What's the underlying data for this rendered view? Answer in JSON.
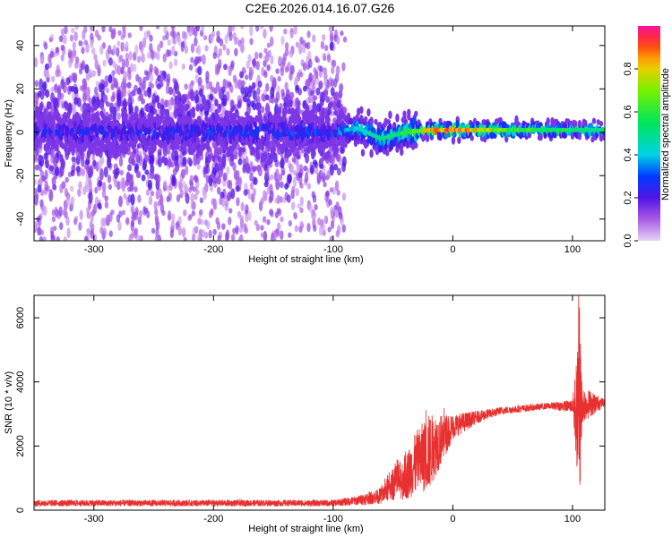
{
  "title": "C2E6.2026.014.16.07.G26",
  "chart_data": [
    {
      "type": "heatmap",
      "xlabel": "Height of straight line (km)",
      "ylabel": "Frequency (Hz)",
      "xlim": [
        -350,
        127
      ],
      "ylim": [
        -50,
        49
      ],
      "xticks": [
        -300,
        -200,
        -100,
        0,
        100
      ],
      "yticks": [
        -40,
        -20,
        0,
        20,
        40
      ],
      "colorbar": {
        "label": "Normalized spectral amplitude",
        "range": [
          0,
          1
        ],
        "ticks": [
          0.0,
          0.2,
          0.4,
          0.6,
          0.8
        ],
        "tick_labels": [
          "0.0",
          "0.2",
          "0.4",
          "0.6",
          "0.8"
        ],
        "colormap": "rainbow"
      },
      "ridge": {
        "description_points": [
          {
            "x": -350,
            "y": 0,
            "amp": 0.25
          },
          {
            "x": -100,
            "y": 0,
            "amp": 0.3
          },
          {
            "x": -80,
            "y": 2,
            "amp": 0.45
          },
          {
            "x": -60,
            "y": -3,
            "amp": 0.5
          },
          {
            "x": -40,
            "y": 0,
            "amp": 0.55
          },
          {
            "x": -20,
            "y": 1,
            "amp": 0.8
          },
          {
            "x": 0,
            "y": 1,
            "amp": 0.9
          },
          {
            "x": 50,
            "y": 1,
            "amp": 0.6
          },
          {
            "x": 100,
            "y": 1,
            "amp": 0.55
          },
          {
            "x": 127,
            "y": 1,
            "amp": 0.5
          }
        ],
        "spread_hz": 4,
        "scatter_range_x": [
          -350,
          -90
        ]
      },
      "grid": false,
      "legend": "none"
    },
    {
      "type": "line",
      "xlabel": "Height of straight line (km)",
      "ylabel": "SNR (10 * v/v)",
      "xlim": [
        -350,
        127
      ],
      "ylim": [
        0,
        6700
      ],
      "xticks": [
        -300,
        -200,
        -100,
        0,
        100
      ],
      "yticks": [
        0,
        2000,
        4000,
        6000
      ],
      "series": [
        {
          "color": "#e83030",
          "envelope": [
            {
              "x": -350,
              "y": 220,
              "noise": 100
            },
            {
              "x": -100,
              "y": 220,
              "noise": 100
            },
            {
              "x": -80,
              "y": 300,
              "noise": 150
            },
            {
              "x": -60,
              "y": 450,
              "noise": 250
            },
            {
              "x": -50,
              "y": 800,
              "noise": 500
            },
            {
              "x": -40,
              "y": 1000,
              "noise": 700
            },
            {
              "x": -30,
              "y": 1500,
              "noise": 1000
            },
            {
              "x": -20,
              "y": 1800,
              "noise": 1200
            },
            {
              "x": -10,
              "y": 2200,
              "noise": 800
            },
            {
              "x": 0,
              "y": 2600,
              "noise": 400
            },
            {
              "x": 20,
              "y": 2900,
              "noise": 200
            },
            {
              "x": 40,
              "y": 3100,
              "noise": 120
            },
            {
              "x": 80,
              "y": 3250,
              "noise": 100
            },
            {
              "x": 100,
              "y": 3250,
              "noise": 200
            },
            {
              "x": 104,
              "y": 3000,
              "noise": 2000
            },
            {
              "x": 106,
              "y": 3200,
              "noise": 3000
            },
            {
              "x": 108,
              "y": 3300,
              "noise": 600
            },
            {
              "x": 127,
              "y": 3350,
              "noise": 100
            }
          ]
        }
      ],
      "grid": false,
      "legend": "none"
    }
  ]
}
